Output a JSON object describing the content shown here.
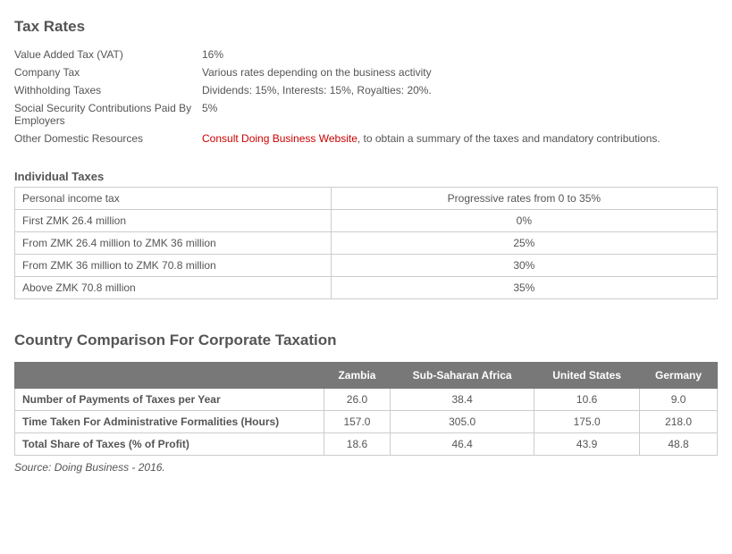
{
  "taxRates": {
    "title": "Tax Rates",
    "rows": [
      {
        "label": "Value Added Tax (VAT)",
        "value": "16%"
      },
      {
        "label": "Company Tax",
        "value": "Various rates depending on the business activity"
      },
      {
        "label": "Withholding Taxes",
        "value": "Dividends: 15%, Interests: 15%, Royalties: 20%."
      },
      {
        "label": "Social Security Contributions Paid By Employers",
        "value": "5%"
      }
    ],
    "otherLabel": "Other Domestic Resources",
    "otherLink": "Consult Doing Business Website",
    "otherTail": ", to obtain a summary of the taxes and mandatory contributions."
  },
  "individualTaxes": {
    "title": "Individual Taxes",
    "rows": [
      {
        "label": "Personal income tax",
        "value": "Progressive rates from 0 to 35%"
      },
      {
        "label": "First ZMK 26.4 million",
        "value": "0%"
      },
      {
        "label": "From ZMK 26.4 million to ZMK 36 million",
        "value": "25%"
      },
      {
        "label": "From ZMK 36 million to ZMK 70.8 million",
        "value": "30%"
      },
      {
        "label": "Above ZMK 70.8 million",
        "value": "35%"
      }
    ]
  },
  "comparison": {
    "title": "Country Comparison For Corporate Taxation",
    "headers": [
      "",
      "Zambia",
      "Sub-Saharan Africa",
      "United States",
      "Germany"
    ],
    "rows": [
      {
        "label": "Number of Payments of Taxes per Year",
        "vals": [
          "26.0",
          "38.4",
          "10.6",
          "9.0"
        ]
      },
      {
        "label": "Time Taken For Administrative Formalities (Hours)",
        "vals": [
          "157.0",
          "305.0",
          "175.0",
          "218.0"
        ]
      },
      {
        "label": "Total Share of Taxes (% of Profit)",
        "vals": [
          "18.6",
          "46.4",
          "43.9",
          "48.8"
        ]
      }
    ],
    "source": "Source: Doing Business - 2016."
  },
  "colors": {
    "text": "#555555",
    "link": "#cc0000",
    "headerBg": "#787878",
    "headerFg": "#ffffff",
    "border": "#cccccc"
  }
}
